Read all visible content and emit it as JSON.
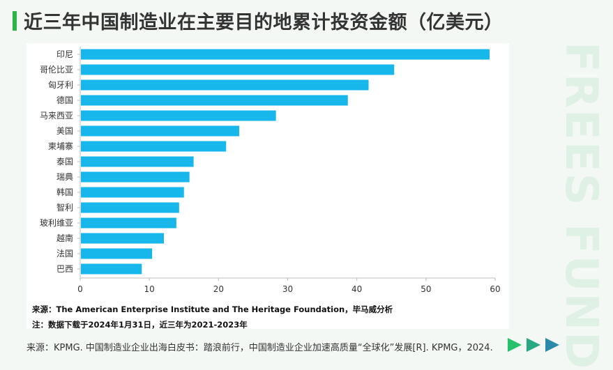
{
  "page": {
    "title": "近三年中国制造业在主要目的地累计投资金额（亿美元）",
    "watermark": "FREES FUND",
    "note_source": "来源：The American Enterprise Institute and The Heritage Foundation，毕马威分析",
    "note_date": "注：数据下载于2024年1月31日，近三年为2021-2023年",
    "footer_source": "来源：KPMG. 中国制造业企业出海白皮书：踏浪前行，中国制造业企业加速高质量“全球化”发展[R]. KPMG，2024."
  },
  "colors": {
    "bar": "#17b7eb",
    "accent": "#2ab44a",
    "arrow1": "#27c06b",
    "arrow2": "#2aa884",
    "arrow3": "#2a8aa8"
  },
  "chart_data": {
    "type": "bar",
    "orientation": "horizontal",
    "categories": [
      "印尼",
      "哥伦比亚",
      "匈牙利",
      "德国",
      "马来西亚",
      "美国",
      "柬埔寨",
      "泰国",
      "瑞典",
      "韩国",
      "智利",
      "玻利维亚",
      "越南",
      "法国",
      "巴西"
    ],
    "values": [
      59.2,
      45.4,
      41.7,
      38.7,
      28.3,
      23.0,
      21.1,
      16.4,
      15.8,
      15.0,
      14.3,
      13.9,
      12.1,
      10.4,
      8.9
    ],
    "xlim": [
      0,
      60
    ],
    "xticks": [
      0,
      10,
      20,
      30,
      40,
      50,
      60
    ],
    "grid": false,
    "title": "",
    "xlabel": "",
    "ylabel": ""
  }
}
